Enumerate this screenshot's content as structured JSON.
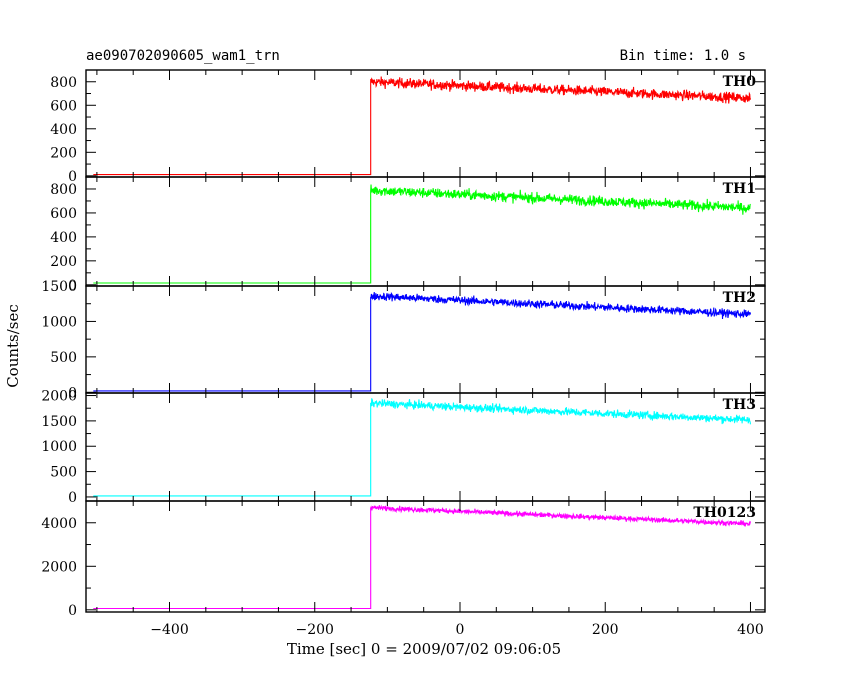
{
  "header": {
    "left_title": "ae090702090605_wam1_trn",
    "right_title": "Bin time: 1.0 s"
  },
  "axes": {
    "xlabel": "Time [sec] 0 = 2009/07/02 09:06:05",
    "ylabel": "Counts/sec"
  },
  "chart_data": {
    "type": "line",
    "xlim": [
      -515,
      420
    ],
    "x_ticks": [
      -400,
      -200,
      0,
      200,
      400
    ],
    "x_tick_labels": [
      "−400",
      "−200",
      "0",
      "200",
      "400"
    ],
    "trigger_time": -123,
    "data_end": 400,
    "panels": [
      {
        "name": "TH0",
        "color": "#ff0000",
        "ylim": [
          -10,
          900
        ],
        "y_ticks": [
          0,
          200,
          400,
          600,
          800
        ],
        "y_tick_labels": [
          "0",
          "200",
          "400",
          "600",
          "800"
        ],
        "baseline": 10,
        "peak": 800,
        "end_value": 660,
        "noise": 30
      },
      {
        "name": "TH1",
        "color": "#00ff00",
        "ylim": [
          -10,
          900
        ],
        "y_ticks": [
          0,
          200,
          400,
          600,
          800
        ],
        "y_tick_labels": [
          "0",
          "200",
          "400",
          "600",
          "800"
        ],
        "baseline": 15,
        "peak": 790,
        "end_value": 640,
        "noise": 30
      },
      {
        "name": "TH2",
        "color": "#0000ff",
        "ylim": [
          -10,
          1500
        ],
        "y_ticks": [
          0,
          500,
          1000,
          1500
        ],
        "y_tick_labels": [
          "0",
          "500",
          "1000",
          "1500"
        ],
        "baseline": 20,
        "peak": 1360,
        "end_value": 1100,
        "noise": 40
      },
      {
        "name": "TH3",
        "color": "#00ffff",
        "ylim": [
          -80,
          2050
        ],
        "y_ticks": [
          0,
          500,
          1000,
          1500,
          2000
        ],
        "y_tick_labels": [
          "0",
          "500",
          "1000",
          "1500",
          "2000"
        ],
        "baseline": 20,
        "peak": 1850,
        "end_value": 1520,
        "noise": 55
      },
      {
        "name": "TH0123",
        "color": "#ff00ff",
        "ylim": [
          -100,
          5000
        ],
        "y_ticks": [
          0,
          2000,
          4000
        ],
        "y_tick_labels": [
          "0",
          "2000",
          "4000"
        ],
        "baseline": 60,
        "peak": 4700,
        "end_value": 3950,
        "noise": 80
      }
    ]
  }
}
